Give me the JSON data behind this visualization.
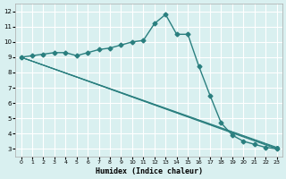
{
  "xlabel": "Humidex (Indice chaleur)",
  "bg_color": "#d9f0f0",
  "grid_color": "#ffffff",
  "line_color": "#2a7f7f",
  "xlim": [
    -0.5,
    23.5
  ],
  "ylim": [
    2.5,
    12.5
  ],
  "xticks": [
    0,
    1,
    2,
    3,
    4,
    5,
    6,
    7,
    8,
    9,
    10,
    11,
    12,
    13,
    14,
    15,
    16,
    17,
    18,
    19,
    20,
    21,
    22,
    23
  ],
  "yticks": [
    3,
    4,
    5,
    6,
    7,
    8,
    9,
    10,
    11,
    12
  ],
  "line1_x": [
    0,
    1,
    2,
    3,
    4,
    5,
    6,
    7,
    8,
    9,
    10,
    11,
    12,
    13,
    14,
    15,
    16,
    17,
    18,
    19,
    20,
    21,
    22,
    23
  ],
  "line1_y": [
    9.0,
    9.1,
    9.2,
    9.3,
    9.3,
    9.1,
    9.3,
    9.5,
    9.6,
    9.8,
    10.0,
    10.1,
    11.2,
    11.8,
    10.5,
    10.5,
    8.4,
    6.5,
    4.7,
    3.9,
    3.5,
    3.3,
    3.1,
    3.0
  ],
  "straight_lines": [
    {
      "x": [
        0,
        23
      ],
      "y": [
        9.0,
        3.0
      ]
    },
    {
      "x": [
        0,
        23
      ],
      "y": [
        9.0,
        3.05
      ]
    },
    {
      "x": [
        0,
        23
      ],
      "y": [
        9.0,
        3.1
      ]
    }
  ]
}
